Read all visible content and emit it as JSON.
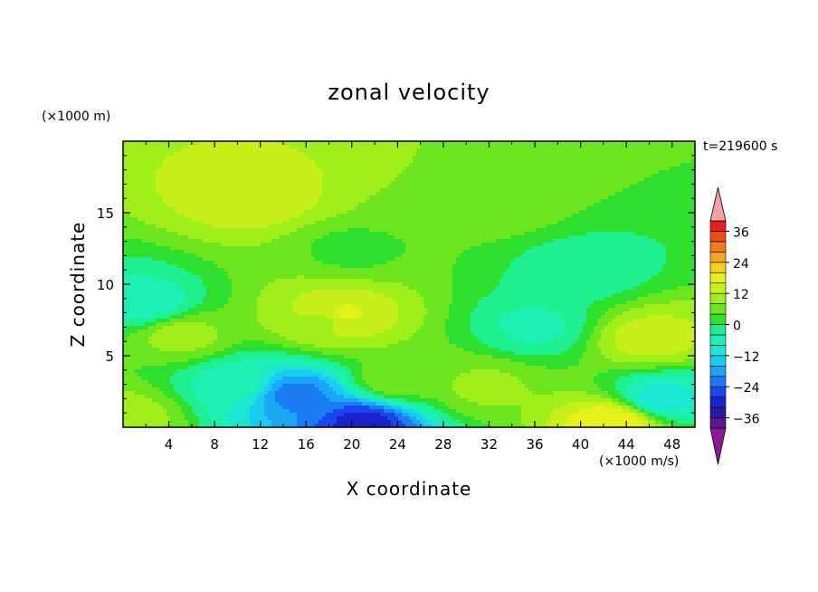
{
  "chart_data": {
    "type": "heatmap",
    "title": "zonal velocity",
    "xlabel": "X coordinate",
    "ylabel": "Z coordinate",
    "x_unit": "(×1000 m/s)",
    "y_unit": "(×1000 m)",
    "time_label": "t=219600 s",
    "xlim": [
      0,
      50
    ],
    "ylim": [
      0,
      20
    ],
    "x_ticks": [
      "4",
      "8",
      "12",
      "16",
      "20",
      "24",
      "28",
      "32",
      "36",
      "40",
      "44",
      "48"
    ],
    "y_ticks": [
      "5",
      "10",
      "15"
    ],
    "colorbar": {
      "levels": [
        -40,
        -36,
        -32,
        -28,
        -24,
        -20,
        -16,
        -12,
        -8,
        -4,
        0,
        4,
        8,
        12,
        16,
        20,
        24,
        28,
        32,
        36,
        40
      ],
      "tick_labels": [
        "36",
        "24",
        "12",
        "0",
        "-12",
        "-24",
        "-36"
      ],
      "colors": [
        "#5a1a8a",
        "#2b1aa8",
        "#1a22cc",
        "#1a46ee",
        "#1a7cf2",
        "#1aa8f4",
        "#19ccf2",
        "#1ae6d2",
        "#1cf0b4",
        "#1ef090",
        "#30e030",
        "#6ee61e",
        "#a0ee1a",
        "#c8f01a",
        "#e8f01a",
        "#f2d21a",
        "#f5a81a",
        "#f57a1a",
        "#f04a1a",
        "#e81e1e"
      ],
      "under_color": "#8b1a9a",
      "over_color": "#f3a0a0"
    },
    "features": [
      {
        "x": 18,
        "z": 17,
        "value": 12
      },
      {
        "x": 12,
        "z": 16.2,
        "value": 16
      },
      {
        "x": 33,
        "z": 15.6,
        "value": 6
      },
      {
        "x": 25,
        "z": 15,
        "value": 4
      },
      {
        "x": 20,
        "z": 12.5,
        "value": 3
      },
      {
        "x": 40,
        "z": 11,
        "value": -3
      },
      {
        "x": 2,
        "z": 8.5,
        "value": -7
      },
      {
        "x": 10,
        "z": 3,
        "value": -6
      },
      {
        "x": 15,
        "z": 2.3,
        "value": -22
      },
      {
        "x": 21,
        "z": 0.3,
        "value": -30
      },
      {
        "x": 36,
        "z": 7,
        "value": -5
      },
      {
        "x": 19,
        "z": 7.8,
        "value": 18
      },
      {
        "x": 18,
        "z": 7.5,
        "value": 10
      },
      {
        "x": 5,
        "z": 6.5,
        "value": 10
      },
      {
        "x": 46,
        "z": 6.2,
        "value": 14
      },
      {
        "x": 24,
        "z": 3.3,
        "value": 8
      },
      {
        "x": 31.5,
        "z": 2.8,
        "value": 9
      },
      {
        "x": 43,
        "z": 0.4,
        "value": 20
      },
      {
        "x": 47,
        "z": 2,
        "value": -10
      },
      {
        "x": 0.5,
        "z": 0.8,
        "value": 10
      }
    ]
  }
}
